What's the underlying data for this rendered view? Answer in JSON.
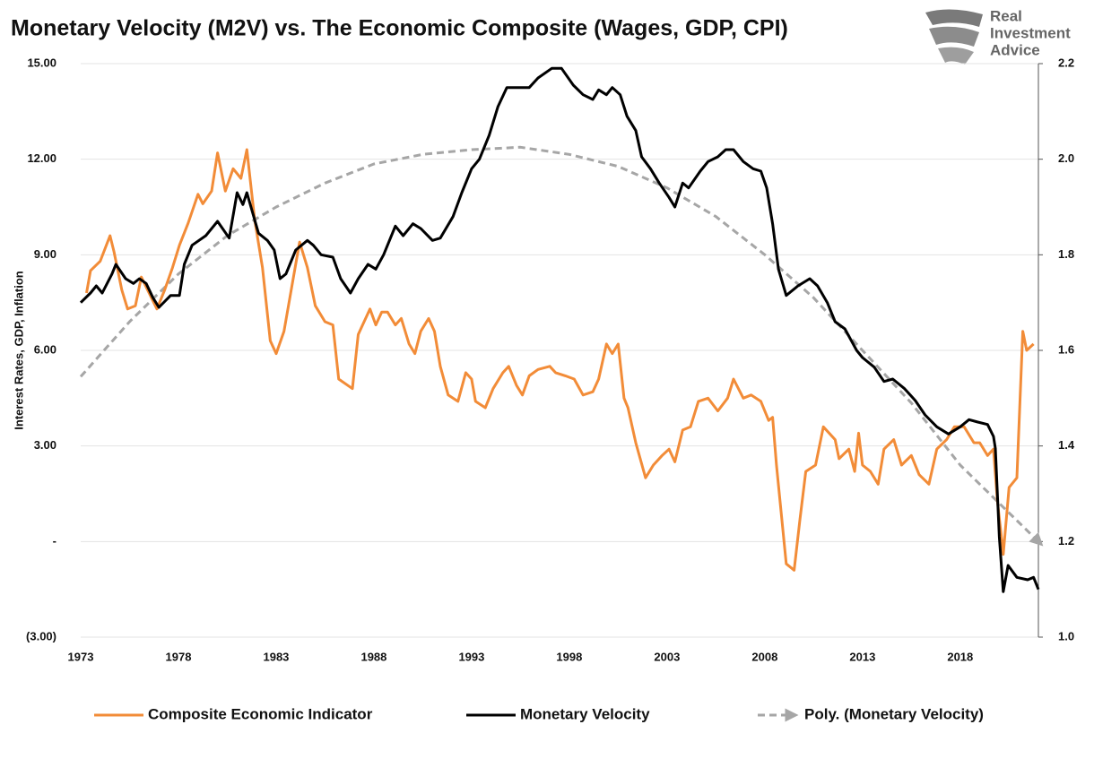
{
  "chart_data": {
    "type": "line",
    "title": "Monetary Velocity (M2V) vs. The Economic Composite (Wages, GDP, CPI)",
    "brand": [
      "Real",
      "Investment",
      "Advice"
    ],
    "ylabel": "Interest Rates, GDP, Inflation",
    "xlim": [
      1973,
      2022
    ],
    "xticks": [
      1973,
      1978,
      1983,
      1988,
      1993,
      1998,
      2003,
      2008,
      2013,
      2018
    ],
    "ylim": [
      -3,
      15
    ],
    "yticks": [
      {
        "value": -3,
        "label": "(3.00)"
      },
      {
        "value": 0,
        "label": "-"
      },
      {
        "value": 3,
        "label": "3.00"
      },
      {
        "value": 6,
        "label": "6.00"
      },
      {
        "value": 9,
        "label": "9.00"
      },
      {
        "value": 12,
        "label": "12.00"
      },
      {
        "value": 15,
        "label": "15.00"
      }
    ],
    "y2lim": [
      1.0,
      2.2
    ],
    "y2ticks": [
      {
        "value": 1,
        "label": "1.0"
      },
      1.2,
      1.4,
      1.6,
      1.8,
      {
        "value": 2,
        "label": "2.0"
      },
      2.2
    ],
    "grid": true,
    "legend": "bottom",
    "series": [
      {
        "name": "Composite Economic Indicator",
        "color": "#f28c38",
        "axis": "y",
        "x": [
          1973.3,
          1973.5,
          1974.0,
          1974.5,
          1974.7,
          1975.1,
          1975.4,
          1975.8,
          1976.1,
          1976.9,
          1977.3,
          1977.7,
          1978.05,
          1978.5,
          1979.0,
          1979.25,
          1979.7,
          1980.0,
          1980.4,
          1980.8,
          1981.2,
          1981.5,
          1981.9,
          1982.3,
          1982.7,
          1983.0,
          1983.4,
          1983.8,
          1984.2,
          1984.6,
          1985.0,
          1985.5,
          1985.9,
          1986.2,
          1986.9,
          1987.2,
          1987.8,
          1988.1,
          1988.4,
          1988.7,
          1989.1,
          1989.4,
          1989.8,
          1990.1,
          1990.4,
          1990.8,
          1991.1,
          1991.4,
          1991.8,
          1992.3,
          1992.7,
          1993.0,
          1993.2,
          1993.7,
          1994.1,
          1994.6,
          1994.9,
          1995.3,
          1995.6,
          1995.95,
          1996.4,
          1997.0,
          1997.3,
          1997.8,
          1998.25,
          1998.7,
          1999.2,
          1999.5,
          1999.9,
          2000.2,
          2000.5,
          2000.8,
          2001.0,
          2001.4,
          2001.9,
          2002.3,
          2002.75,
          2003.1,
          2003.4,
          2003.8,
          2004.2,
          2004.6,
          2005.1,
          2005.6,
          2006.1,
          2006.4,
          2006.9,
          2007.3,
          2007.8,
          2008.2,
          2008.4,
          2008.6,
          2009.1,
          2009.5,
          2009.8,
          2010.1,
          2010.6,
          2011.0,
          2011.6,
          2011.8,
          2012.3,
          2012.6,
          2012.8,
          2013.0,
          2013.4,
          2013.8,
          2014.1,
          2014.6,
          2015.0,
          2015.5,
          2015.9,
          2016.4,
          2016.8,
          2017.3,
          2017.7,
          2018.2,
          2018.7,
          2019.0,
          2019.4,
          2019.7,
          2019.9,
          2020.2,
          2020.5,
          2020.9,
          2021.2,
          2021.4,
          2021.75
        ],
        "values": [
          7.8,
          8.5,
          8.8,
          9.6,
          9.1,
          7.9,
          7.3,
          7.4,
          8.3,
          7.3,
          7.9,
          8.6,
          9.3,
          10.0,
          10.9,
          10.6,
          11.0,
          12.2,
          11.0,
          11.7,
          11.4,
          12.3,
          10.1,
          8.6,
          6.3,
          5.9,
          6.6,
          8.0,
          9.4,
          8.6,
          7.4,
          6.9,
          6.8,
          5.1,
          4.8,
          6.5,
          7.3,
          6.8,
          7.2,
          7.2,
          6.8,
          7.0,
          6.2,
          5.9,
          6.6,
          7.0,
          6.6,
          5.5,
          4.6,
          4.4,
          5.3,
          5.1,
          4.4,
          4.2,
          4.8,
          5.3,
          5.5,
          4.9,
          4.6,
          5.2,
          5.4,
          5.5,
          5.3,
          5.2,
          5.1,
          4.6,
          4.7,
          5.1,
          6.2,
          5.9,
          6.2,
          4.5,
          4.2,
          3.1,
          2.0,
          2.4,
          2.7,
          2.9,
          2.5,
          3.5,
          3.6,
          4.4,
          4.5,
          4.1,
          4.5,
          5.1,
          4.5,
          4.6,
          4.4,
          3.8,
          3.9,
          2.4,
          -0.7,
          -0.9,
          0.7,
          2.2,
          2.4,
          3.6,
          3.2,
          2.6,
          2.9,
          2.2,
          3.4,
          2.4,
          2.2,
          1.8,
          2.9,
          3.2,
          2.4,
          2.7,
          2.1,
          1.8,
          2.9,
          3.2,
          3.6,
          3.6,
          3.1,
          3.1,
          2.7,
          2.9,
          1.3,
          -0.4,
          1.7,
          2.0,
          6.6,
          6.0,
          6.2
        ]
      },
      {
        "name": "Monetary Velocity",
        "color": "#000000",
        "axis": "y2",
        "x": [
          1973.0,
          1973.5,
          1973.8,
          1974.1,
          1974.6,
          1974.8,
          1975.3,
          1975.7,
          1976.0,
          1976.35,
          1976.7,
          1977.0,
          1977.6,
          1978.05,
          1978.3,
          1978.7,
          1979.4,
          1980.0,
          1980.6,
          1981.0,
          1981.3,
          1981.5,
          1982.1,
          1982.55,
          1982.9,
          1983.2,
          1983.5,
          1984.0,
          1984.6,
          1984.9,
          1985.3,
          1985.9,
          1986.3,
          1986.8,
          1987.2,
          1987.7,
          1988.1,
          1988.5,
          1989.1,
          1989.5,
          1990.0,
          1990.4,
          1991.0,
          1991.4,
          1992.05,
          1992.5,
          1993.0,
          1993.4,
          1993.9,
          1994.35,
          1994.8,
          1995.3,
          1995.95,
          1996.4,
          1997.1,
          1997.6,
          1998.2,
          1998.7,
          1999.2,
          1999.5,
          1999.9,
          2000.2,
          2000.6,
          2000.95,
          2001.4,
          2001.7,
          2002.15,
          2002.6,
          2003.1,
          2003.4,
          2003.8,
          2004.1,
          2004.7,
          2005.1,
          2005.6,
          2006.0,
          2006.4,
          2006.9,
          2007.4,
          2007.8,
          2008.1,
          2008.4,
          2008.7,
          2009.1,
          2009.7,
          2010.3,
          2010.7,
          2011.2,
          2011.6,
          2012.1,
          2012.7,
          2013.0,
          2013.6,
          2014.1,
          2014.55,
          2015.15,
          2015.7,
          2016.2,
          2016.8,
          2017.4,
          2018.0,
          2018.45,
          2018.9,
          2019.4,
          2019.7,
          2019.8,
          2020.0,
          2020.2,
          2020.45,
          2020.9,
          2021.45,
          2021.75,
          2022.0
        ],
        "values": [
          1.7,
          1.72,
          1.735,
          1.72,
          1.76,
          1.78,
          1.75,
          1.74,
          1.75,
          1.74,
          1.71,
          1.69,
          1.715,
          1.715,
          1.78,
          1.82,
          1.84,
          1.87,
          1.835,
          1.93,
          1.905,
          1.93,
          1.845,
          1.83,
          1.81,
          1.75,
          1.76,
          1.81,
          1.83,
          1.82,
          1.8,
          1.795,
          1.75,
          1.72,
          1.75,
          1.78,
          1.77,
          1.8,
          1.86,
          1.84,
          1.865,
          1.855,
          1.83,
          1.835,
          1.88,
          1.93,
          1.98,
          2.0,
          2.05,
          2.11,
          2.15,
          2.15,
          2.15,
          2.17,
          2.19,
          2.19,
          2.155,
          2.135,
          2.125,
          2.145,
          2.135,
          2.15,
          2.135,
          2.09,
          2.06,
          2.005,
          1.98,
          1.95,
          1.92,
          1.9,
          1.95,
          1.94,
          1.975,
          1.995,
          2.005,
          2.02,
          2.02,
          1.995,
          1.98,
          1.975,
          1.94,
          1.865,
          1.77,
          1.715,
          1.735,
          1.75,
          1.735,
          1.7,
          1.66,
          1.645,
          1.6,
          1.585,
          1.565,
          1.535,
          1.54,
          1.52,
          1.495,
          1.465,
          1.44,
          1.425,
          1.44,
          1.455,
          1.45,
          1.445,
          1.42,
          1.395,
          1.21,
          1.095,
          1.15,
          1.125,
          1.12,
          1.125,
          1.1
        ]
      },
      {
        "name": "Poly. (Monetary Velocity)",
        "color": "#a6a6a6",
        "axis": "y2",
        "dashed": true,
        "arrow": true,
        "x": [
          1973,
          1975.5,
          1978,
          1980.5,
          1983,
          1985.5,
          1988,
          1990.5,
          1993,
          1995.5,
          1998,
          2000.5,
          2003,
          2005.5,
          2008,
          2010.5,
          2013,
          2015.5,
          2018,
          2020,
          2022
        ],
        "values": [
          1.545,
          1.66,
          1.76,
          1.84,
          1.9,
          1.95,
          1.99,
          2.01,
          2.02,
          2.025,
          2.01,
          1.985,
          1.94,
          1.88,
          1.8,
          1.71,
          1.6,
          1.49,
          1.36,
          1.28,
          1.2
        ]
      }
    ]
  }
}
